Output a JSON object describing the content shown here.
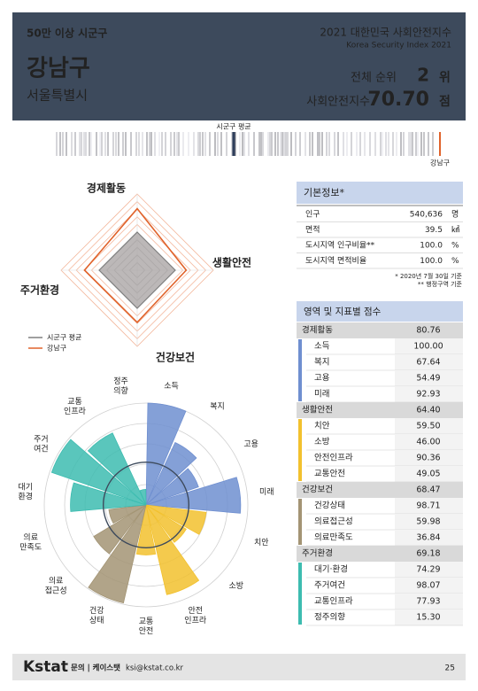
{
  "header": {
    "category": "50만 이상 시군구",
    "title": "2021 대한민국 사회안전지수",
    "subtitle": "Korea Security Index 2021",
    "district": "강남구",
    "province": "서울특별시",
    "rank_label": "전체 순위",
    "rank": 2,
    "rank_unit": "위",
    "score_label": "사회안전지수",
    "score": "70.70",
    "score_unit": "점"
  },
  "strip": {
    "average_label": "시군구 평균",
    "district_label": "강남구"
  },
  "radar": {
    "axes": [
      "경제활동",
      "생활안전",
      "건강보건",
      "주거환경"
    ],
    "rlim": [
      0,
      100
    ],
    "rings": [
      10,
      20,
      30,
      40,
      50,
      60,
      70,
      80,
      90,
      100
    ],
    "average": [
      50,
      50,
      50,
      50
    ],
    "legend": [
      "시군구 평균",
      "강남구"
    ],
    "average_color": "#7f7f7f",
    "district_color": "#e0622a"
  },
  "basic_info": {
    "title": "기본정보*",
    "rows": [
      [
        "인구",
        "540,636",
        "명"
      ],
      [
        "면적",
        "39.5",
        "㎢"
      ],
      [
        "도시지역 인구비율**",
        "100.0",
        "%"
      ],
      [
        "도시지역 면적비율",
        "100.0",
        "%"
      ]
    ],
    "notes": [
      "* 2020년 7월 30일 기준",
      "** 행정구역 기준"
    ]
  },
  "scores": {
    "title": "영역 및 지표별 점수",
    "domains": [
      {
        "name": "경제활동",
        "value": 80.76,
        "color": "#6f8fd0",
        "items": [
          {
            "name": "소득",
            "value": 100,
            "value_label": "100.00"
          },
          {
            "name": "복지",
            "value": 67.64
          },
          {
            "name": "고용",
            "value": 54.49
          },
          {
            "name": "미래",
            "value": 92.93
          }
        ]
      },
      {
        "name": "생활안전",
        "value": 64.4,
        "value_label": "64.40",
        "color": "#f2c12e",
        "items": [
          {
            "name": "치안",
            "value": 59.5,
            "value_label": "59.50"
          },
          {
            "name": "소방",
            "value": 46,
            "value_label": "46.00"
          },
          {
            "name": "안전인프라",
            "value": 90.36
          },
          {
            "name": "교통안전",
            "value": 49.05
          }
        ]
      },
      {
        "name": "건강보건",
        "value": 68.47,
        "color": "#a39474",
        "items": [
          {
            "name": "건강상태",
            "value": 98.71
          },
          {
            "name": "의료접근성",
            "value": 59.98
          },
          {
            "name": "의료만족도",
            "value": 36.84
          }
        ]
      },
      {
        "name": "주거환경",
        "value": 69.18,
        "color": "#3dbcb0",
        "items": [
          {
            "name": "대기·환경",
            "value": 74.29
          },
          {
            "name": "주거여건",
            "value": 98.07
          },
          {
            "name": "교통인프라",
            "value": 77.93
          },
          {
            "name": "정주의향",
            "value": 15.3,
            "value_label": "15.30"
          }
        ]
      }
    ]
  },
  "rose": {
    "labels": [
      [
        "소득"
      ],
      [
        "복지"
      ],
      [
        "고용"
      ],
      [
        "미래"
      ],
      [
        "치안"
      ],
      [
        "소방"
      ],
      [
        "안전",
        "인프라"
      ],
      [
        "교통",
        "안전"
      ],
      [
        "건강",
        "상태"
      ],
      [
        "의료",
        "접근성"
      ],
      [
        "의료",
        "만족도"
      ],
      [
        "대기",
        "환경"
      ],
      [
        "주거",
        "여건"
      ],
      [
        "교통",
        "인프라"
      ],
      [
        "정주",
        "의향"
      ]
    ],
    "rlim": [
      0,
      100
    ],
    "rings": [
      20,
      40,
      60,
      80,
      100
    ],
    "average": 42
  },
  "footer": {
    "logo": "Kstat",
    "contact_label": "문의 | 케이스탯",
    "email": "ksi@kstat.co.kr",
    "page": "25"
  }
}
